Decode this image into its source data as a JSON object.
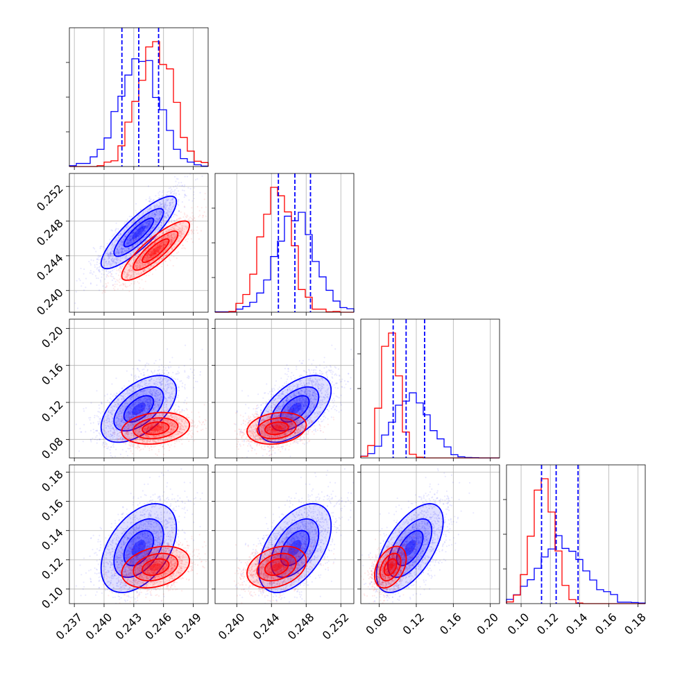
{
  "chart_data": {
    "type": "corner",
    "grid": true,
    "parameters": [
      {
        "range": [
          0.2365,
          0.2505
        ],
        "ticks": [
          0.237,
          0.24,
          0.243,
          0.246,
          0.249
        ],
        "tick_labels": [
          "0.237",
          "0.240",
          "0.243",
          "0.246",
          "0.249"
        ]
      },
      {
        "range": [
          0.2375,
          0.2535
        ],
        "ticks": [
          0.24,
          0.244,
          0.248,
          0.252
        ],
        "tick_labels": [
          "0.240",
          "0.244",
          "0.248",
          "0.252"
        ]
      },
      {
        "range": [
          0.06,
          0.21
        ],
        "ticks": [
          0.08,
          0.12,
          0.16,
          0.2
        ],
        "tick_labels": [
          "0.08",
          "0.12",
          "0.16",
          "0.20"
        ]
      },
      {
        "range": [
          0.09,
          0.185
        ],
        "ticks": [
          0.1,
          0.12,
          0.14,
          0.16,
          0.18
        ],
        "tick_labels": [
          "0.10",
          "0.12",
          "0.14",
          "0.16",
          "0.18"
        ]
      }
    ],
    "series": [
      {
        "color": "#0000ff",
        "mean": [
          0.2435,
          0.2467,
          0.113,
          0.128
        ],
        "std": [
          0.002,
          0.0022,
          0.019,
          0.016
        ],
        "corr": [
          [
            1,
            0.85,
            0.55,
            0.45
          ],
          [
            0.85,
            1,
            0.55,
            0.5
          ],
          [
            0.55,
            0.55,
            1,
            0.6
          ],
          [
            0.45,
            0.5,
            0.6,
            1
          ]
        ],
        "quantiles": [
          [
            0.2418,
            0.2435,
            0.2455
          ],
          [
            0.2448,
            0.2467,
            0.2485
          ],
          [
            0.095,
            0.109,
            0.129
          ],
          [
            0.114,
            0.124,
            0.139
          ]
        ]
      },
      {
        "color": "#ff0000",
        "mean": [
          0.2452,
          0.2446,
          0.092,
          0.115
        ],
        "std": [
          0.0018,
          0.0018,
          0.009,
          0.0075
        ],
        "corr": [
          [
            1,
            0.85,
            0.2,
            0.3
          ],
          [
            0.85,
            1,
            0.2,
            0.3
          ],
          [
            0.2,
            0.2,
            1,
            0.4
          ],
          [
            0.3,
            0.3,
            0.4,
            1
          ]
        ]
      }
    ]
  }
}
